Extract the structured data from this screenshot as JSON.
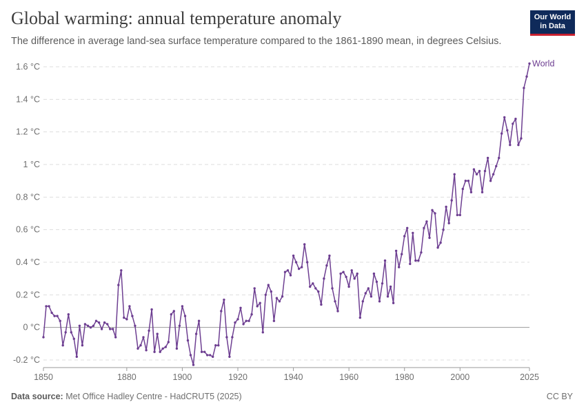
{
  "header": {
    "title": "Global warming: annual temperature anomaly",
    "subtitle": "The difference in average land-sea surface temperature compared to the 1861-1890 mean, in degrees Celsius.",
    "logo_line1": "Our World",
    "logo_line2": "in Data"
  },
  "footer": {
    "source_label": "Data source:",
    "source_text": "Met Office Hadley Centre - HadCRUT5 (2025)",
    "license": "CC BY"
  },
  "colors": {
    "series": "#6d3e91",
    "grid": "#dddddd",
    "axis": "#999999",
    "logo_bg": "#0f2a5a",
    "logo_accent": "#c8202f"
  },
  "chart_data": {
    "type": "line",
    "title": "Global warming: annual temperature anomaly",
    "unit": "°C",
    "ylim": [
      -0.2,
      1.6
    ],
    "xlim": [
      1850,
      2025
    ],
    "y_ticks": [
      -0.2,
      0,
      0.2,
      0.4,
      0.6,
      0.8,
      1,
      1.2,
      1.4,
      1.6
    ],
    "y_tick_labels": [
      "-0.2 °C",
      "0 °C",
      "0.2 °C",
      "0.4 °C",
      "0.6 °C",
      "0.8 °C",
      "1 °C",
      "1.2 °C",
      "1.4 °C",
      "1.6 °C"
    ],
    "x_ticks": [
      1850,
      1880,
      1900,
      1920,
      1940,
      1960,
      1980,
      2000,
      2025
    ],
    "x_tick_labels": [
      "1850",
      "1880",
      "1900",
      "1920",
      "1940",
      "1960",
      "1980",
      "2000",
      "2025"
    ],
    "grid": "horizontal dashed",
    "series": [
      {
        "name": "World",
        "x_start": 1850,
        "values": [
          -0.06,
          0.13,
          0.13,
          0.09,
          0.07,
          0.07,
          0.04,
          -0.11,
          -0.03,
          0.08,
          -0.03,
          -0.07,
          -0.18,
          0.01,
          -0.11,
          0.02,
          0.01,
          0.0,
          0.01,
          0.04,
          0.03,
          -0.01,
          0.03,
          0.02,
          -0.01,
          -0.01,
          -0.06,
          0.26,
          0.35,
          0.06,
          0.05,
          0.13,
          0.07,
          0.01,
          -0.13,
          -0.11,
          -0.06,
          -0.14,
          -0.02,
          0.11,
          -0.15,
          -0.04,
          -0.15,
          -0.13,
          -0.12,
          -0.09,
          0.08,
          0.1,
          -0.13,
          0.01,
          0.13,
          0.07,
          -0.08,
          -0.17,
          -0.23,
          -0.04,
          0.04,
          -0.15,
          -0.15,
          -0.17,
          -0.17,
          -0.18,
          -0.11,
          -0.11,
          0.1,
          0.17,
          -0.06,
          -0.18,
          -0.06,
          0.03,
          0.05,
          0.12,
          0.02,
          0.04,
          0.04,
          0.08,
          0.24,
          0.13,
          0.15,
          -0.03,
          0.2,
          0.26,
          0.22,
          0.04,
          0.18,
          0.16,
          0.19,
          0.34,
          0.35,
          0.32,
          0.44,
          0.4,
          0.36,
          0.37,
          0.51,
          0.4,
          0.25,
          0.27,
          0.24,
          0.22,
          0.14,
          0.3,
          0.38,
          0.44,
          0.24,
          0.16,
          0.1,
          0.33,
          0.34,
          0.31,
          0.25,
          0.35,
          0.3,
          0.33,
          0.06,
          0.16,
          0.21,
          0.24,
          0.19,
          0.33,
          0.28,
          0.16,
          0.27,
          0.41,
          0.19,
          0.25,
          0.15,
          0.47,
          0.37,
          0.45,
          0.56,
          0.61,
          0.39,
          0.58,
          0.41,
          0.41,
          0.46,
          0.61,
          0.65,
          0.55,
          0.72,
          0.7,
          0.49,
          0.52,
          0.6,
          0.74,
          0.64,
          0.78,
          0.94,
          0.69,
          0.69,
          0.85,
          0.9,
          0.9,
          0.83,
          0.97,
          0.94,
          0.96,
          0.83,
          0.96,
          1.04,
          0.9,
          0.94,
          0.99,
          1.04,
          1.19,
          1.29,
          1.21,
          1.12,
          1.25,
          1.28,
          1.12,
          1.16,
          1.47,
          1.54,
          1.62
        ]
      }
    ]
  }
}
